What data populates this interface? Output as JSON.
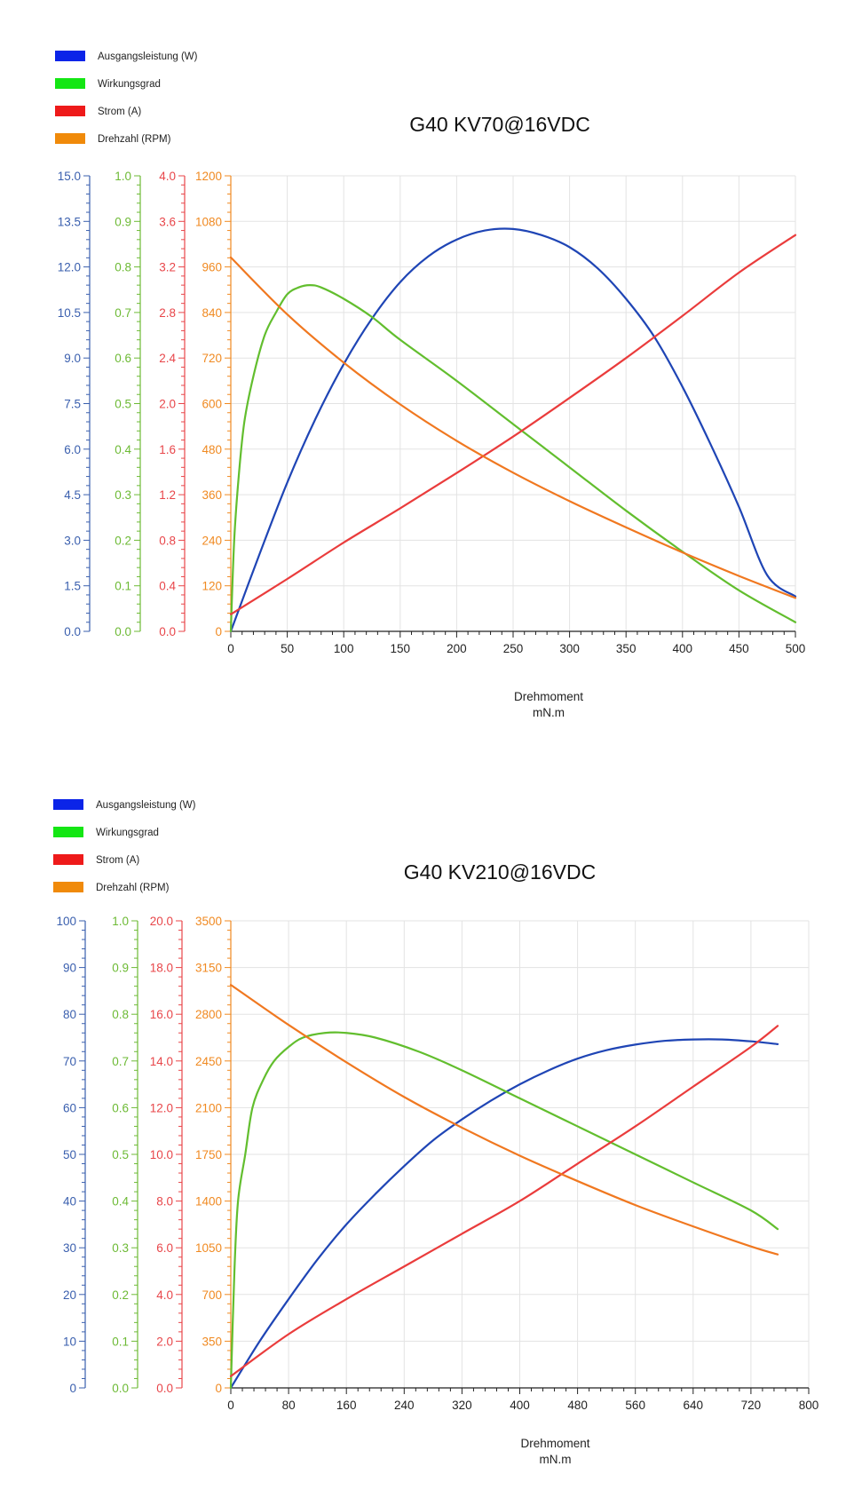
{
  "chart_data": [
    {
      "type": "line",
      "title": "G40 KV70@16VDC",
      "xlabel": "Drehmoment",
      "xunit": "mN.m",
      "xlim": [
        0,
        500
      ],
      "xticks": [
        "0",
        "50",
        "100",
        "150",
        "200",
        "250",
        "300",
        "350",
        "400",
        "450",
        "500"
      ],
      "legend": [
        {
          "label": "Ausgangsleistung (W)",
          "color": "#0b24e8"
        },
        {
          "label": "Wirkungsgrad",
          "color": "#14e614"
        },
        {
          "label": "Strom (A)",
          "color": "#ee1a1a"
        },
        {
          "label": "Drehzahl (RPM)",
          "color": "#f08a0a"
        }
      ],
      "axes": [
        {
          "name": "power",
          "color": "#3a5fae",
          "lim": [
            0,
            15
          ],
          "ticks": [
            "0.0",
            "1.5",
            "3.0",
            "4.5",
            "6.0",
            "7.5",
            "9.0",
            "10.5",
            "12.0",
            "13.5",
            "15.0"
          ]
        },
        {
          "name": "efficiency",
          "color": "#6dba35",
          "lim": [
            0,
            1
          ],
          "ticks": [
            "0.0",
            "0.1",
            "0.2",
            "0.3",
            "0.4",
            "0.5",
            "0.6",
            "0.7",
            "0.8",
            "0.9",
            "1.0"
          ]
        },
        {
          "name": "current",
          "color": "#e8464a",
          "lim": [
            0,
            4
          ],
          "ticks": [
            "0.0",
            "0.4",
            "0.8",
            "1.2",
            "1.6",
            "2.0",
            "2.4",
            "2.8",
            "3.2",
            "3.6",
            "4.0"
          ]
        },
        {
          "name": "speed",
          "color": "#f08a22",
          "lim": [
            0,
            1200
          ],
          "ticks": [
            "0",
            "120",
            "240",
            "360",
            "480",
            "600",
            "720",
            "840",
            "960",
            "1080",
            "1200"
          ]
        }
      ],
      "series": [
        {
          "name": "Ausgangsleistung (W)",
          "axis": "power",
          "color": "#1f45b5",
          "x": [
            0,
            25,
            50,
            75,
            100,
            125,
            150,
            175,
            200,
            225,
            250,
            275,
            300,
            325,
            350,
            375,
            400,
            425,
            450,
            475,
            500
          ],
          "y": [
            0,
            2.5,
            4.9,
            7.0,
            8.8,
            10.3,
            11.5,
            12.35,
            12.9,
            13.2,
            13.25,
            13.05,
            12.65,
            11.95,
            10.95,
            9.7,
            8.05,
            6.15,
            4.1,
            1.85,
            1.15
          ]
        },
        {
          "name": "Wirkungsgrad",
          "axis": "efficiency",
          "color": "#62be2e",
          "x": [
            0,
            3,
            7,
            12,
            20,
            30,
            40,
            50,
            60,
            70,
            80,
            100,
            125,
            150,
            200,
            250,
            300,
            350,
            400,
            450,
            500
          ],
          "y": [
            0,
            0.2,
            0.34,
            0.46,
            0.56,
            0.65,
            0.7,
            0.74,
            0.755,
            0.76,
            0.755,
            0.73,
            0.69,
            0.64,
            0.55,
            0.455,
            0.36,
            0.265,
            0.175,
            0.09,
            0.02
          ]
        },
        {
          "name": "Strom (A)",
          "axis": "current",
          "color": "#ea3c3c",
          "x": [
            0,
            50,
            100,
            150,
            200,
            250,
            300,
            350,
            400,
            450,
            500
          ],
          "y": [
            0.15,
            0.46,
            0.78,
            1.08,
            1.39,
            1.71,
            2.05,
            2.4,
            2.77,
            3.15,
            3.48
          ]
        },
        {
          "name": "Drehzahl (RPM)",
          "axis": "speed",
          "color": "#f07820",
          "x": [
            0,
            50,
            100,
            150,
            200,
            250,
            300,
            350,
            400,
            450,
            500
          ],
          "y": [
            985,
            835,
            708,
            598,
            502,
            418,
            343,
            274,
            208,
            146,
            88
          ]
        }
      ]
    },
    {
      "type": "line",
      "title": "G40 KV210@16VDC",
      "xlabel": "Drehmoment",
      "xunit": "mN.m",
      "xlim": [
        0,
        800
      ],
      "xticks": [
        "0",
        "80",
        "160",
        "240",
        "320",
        "400",
        "480",
        "560",
        "640",
        "720",
        "800"
      ],
      "legend": [
        {
          "label": "Ausgangsleistung (W)",
          "color": "#0b24e8"
        },
        {
          "label": "Wirkungsgrad",
          "color": "#14e614"
        },
        {
          "label": "Strom (A)",
          "color": "#ee1a1a"
        },
        {
          "label": "Drehzahl (RPM)",
          "color": "#f08a0a"
        }
      ],
      "axes": [
        {
          "name": "power",
          "color": "#3a5fae",
          "lim": [
            0,
            100
          ],
          "ticks": [
            "0",
            "10",
            "20",
            "30",
            "40",
            "50",
            "60",
            "70",
            "80",
            "90",
            "100"
          ]
        },
        {
          "name": "efficiency",
          "color": "#6dba35",
          "lim": [
            0,
            1
          ],
          "ticks": [
            "0.0",
            "0.1",
            "0.2",
            "0.3",
            "0.4",
            "0.5",
            "0.6",
            "0.7",
            "0.8",
            "0.9",
            "1.0"
          ]
        },
        {
          "name": "current",
          "color": "#e8464a",
          "lim": [
            0,
            20
          ],
          "ticks": [
            "0.0",
            "2.0",
            "4.0",
            "6.0",
            "8.0",
            "10.0",
            "12.0",
            "14.0",
            "16.0",
            "18.0",
            "20.0"
          ]
        },
        {
          "name": "speed",
          "color": "#f08a22",
          "lim": [
            0,
            3500
          ],
          "ticks": [
            "0",
            "350",
            "700",
            "1050",
            "1400",
            "1750",
            "2100",
            "2450",
            "2800",
            "3150",
            "3500"
          ]
        }
      ],
      "series": [
        {
          "name": "Ausgangsleistung (W)",
          "axis": "power",
          "color": "#1f45b5",
          "x": [
            0,
            40,
            80,
            120,
            160,
            200,
            240,
            280,
            320,
            360,
            400,
            440,
            480,
            520,
            560,
            600,
            640,
            680,
            720,
            757
          ],
          "y": [
            0,
            10,
            19,
            27.5,
            35,
            41.5,
            47.5,
            53,
            57.5,
            61.5,
            65,
            68,
            70.5,
            72.3,
            73.5,
            74.3,
            74.6,
            74.6,
            74.2,
            73.6
          ]
        },
        {
          "name": "Wirkungsgrad",
          "axis": "efficiency",
          "color": "#62be2e",
          "x": [
            0,
            5,
            10,
            20,
            30,
            45,
            60,
            80,
            100,
            130,
            160,
            200,
            260,
            320,
            400,
            480,
            560,
            640,
            720,
            757
          ],
          "y": [
            0,
            0.25,
            0.4,
            0.5,
            0.6,
            0.66,
            0.7,
            0.73,
            0.75,
            0.76,
            0.76,
            0.75,
            0.72,
            0.68,
            0.62,
            0.56,
            0.5,
            0.44,
            0.38,
            0.34
          ]
        },
        {
          "name": "Strom (A)",
          "axis": "current",
          "color": "#ea3c3c",
          "x": [
            0,
            80,
            160,
            240,
            320,
            400,
            480,
            560,
            640,
            720,
            757
          ],
          "y": [
            0.5,
            2.3,
            3.8,
            5.2,
            6.6,
            8.0,
            9.6,
            11.2,
            12.9,
            14.6,
            15.5
          ]
        },
        {
          "name": "Drehzahl (RPM)",
          "axis": "speed",
          "color": "#f07820",
          "x": [
            0,
            80,
            160,
            240,
            320,
            400,
            480,
            560,
            640,
            720,
            757
          ],
          "y": [
            3020,
            2720,
            2440,
            2180,
            1950,
            1740,
            1550,
            1370,
            1210,
            1060,
            1000
          ]
        }
      ]
    }
  ]
}
